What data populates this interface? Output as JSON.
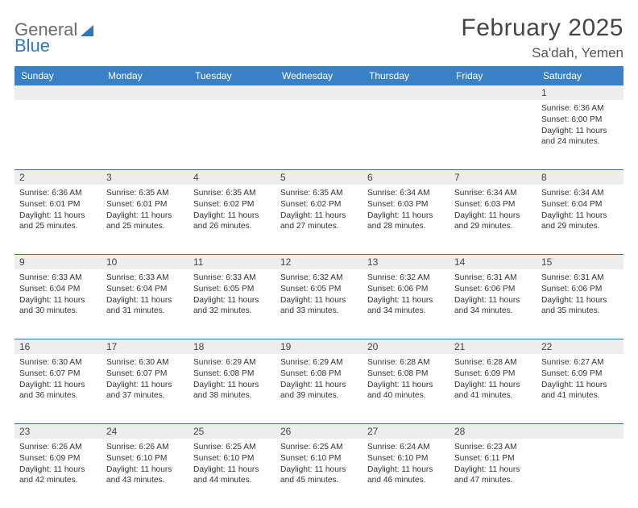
{
  "logo": {
    "word1": "General",
    "word2": "Blue"
  },
  "title": "February 2025",
  "location": "Sa'dah, Yemen",
  "colors": {
    "header_bg": "#3a80c4",
    "header_text": "#ffffff",
    "daynum_bg": "#ededed",
    "row_border": "#3a6fa5",
    "logo_gray": "#6b6b6b",
    "logo_blue": "#2f77bb"
  },
  "day_names": [
    "Sunday",
    "Monday",
    "Tuesday",
    "Wednesday",
    "Thursday",
    "Friday",
    "Saturday"
  ],
  "weeks": [
    {
      "nums": [
        "",
        "",
        "",
        "",
        "",
        "",
        "1"
      ],
      "cells": [
        null,
        null,
        null,
        null,
        null,
        null,
        {
          "sunrise": "Sunrise: 6:36 AM",
          "sunset": "Sunset: 6:00 PM",
          "daylight": "Daylight: 11 hours and 24 minutes."
        }
      ]
    },
    {
      "nums": [
        "2",
        "3",
        "4",
        "5",
        "6",
        "7",
        "8"
      ],
      "cells": [
        {
          "sunrise": "Sunrise: 6:36 AM",
          "sunset": "Sunset: 6:01 PM",
          "daylight": "Daylight: 11 hours and 25 minutes."
        },
        {
          "sunrise": "Sunrise: 6:35 AM",
          "sunset": "Sunset: 6:01 PM",
          "daylight": "Daylight: 11 hours and 25 minutes."
        },
        {
          "sunrise": "Sunrise: 6:35 AM",
          "sunset": "Sunset: 6:02 PM",
          "daylight": "Daylight: 11 hours and 26 minutes."
        },
        {
          "sunrise": "Sunrise: 6:35 AM",
          "sunset": "Sunset: 6:02 PM",
          "daylight": "Daylight: 11 hours and 27 minutes."
        },
        {
          "sunrise": "Sunrise: 6:34 AM",
          "sunset": "Sunset: 6:03 PM",
          "daylight": "Daylight: 11 hours and 28 minutes."
        },
        {
          "sunrise": "Sunrise: 6:34 AM",
          "sunset": "Sunset: 6:03 PM",
          "daylight": "Daylight: 11 hours and 29 minutes."
        },
        {
          "sunrise": "Sunrise: 6:34 AM",
          "sunset": "Sunset: 6:04 PM",
          "daylight": "Daylight: 11 hours and 29 minutes."
        }
      ]
    },
    {
      "nums": [
        "9",
        "10",
        "11",
        "12",
        "13",
        "14",
        "15"
      ],
      "cells": [
        {
          "sunrise": "Sunrise: 6:33 AM",
          "sunset": "Sunset: 6:04 PM",
          "daylight": "Daylight: 11 hours and 30 minutes."
        },
        {
          "sunrise": "Sunrise: 6:33 AM",
          "sunset": "Sunset: 6:04 PM",
          "daylight": "Daylight: 11 hours and 31 minutes."
        },
        {
          "sunrise": "Sunrise: 6:33 AM",
          "sunset": "Sunset: 6:05 PM",
          "daylight": "Daylight: 11 hours and 32 minutes."
        },
        {
          "sunrise": "Sunrise: 6:32 AM",
          "sunset": "Sunset: 6:05 PM",
          "daylight": "Daylight: 11 hours and 33 minutes."
        },
        {
          "sunrise": "Sunrise: 6:32 AM",
          "sunset": "Sunset: 6:06 PM",
          "daylight": "Daylight: 11 hours and 34 minutes."
        },
        {
          "sunrise": "Sunrise: 6:31 AM",
          "sunset": "Sunset: 6:06 PM",
          "daylight": "Daylight: 11 hours and 34 minutes."
        },
        {
          "sunrise": "Sunrise: 6:31 AM",
          "sunset": "Sunset: 6:06 PM",
          "daylight": "Daylight: 11 hours and 35 minutes."
        }
      ]
    },
    {
      "nums": [
        "16",
        "17",
        "18",
        "19",
        "20",
        "21",
        "22"
      ],
      "cells": [
        {
          "sunrise": "Sunrise: 6:30 AM",
          "sunset": "Sunset: 6:07 PM",
          "daylight": "Daylight: 11 hours and 36 minutes."
        },
        {
          "sunrise": "Sunrise: 6:30 AM",
          "sunset": "Sunset: 6:07 PM",
          "daylight": "Daylight: 11 hours and 37 minutes."
        },
        {
          "sunrise": "Sunrise: 6:29 AM",
          "sunset": "Sunset: 6:08 PM",
          "daylight": "Daylight: 11 hours and 38 minutes."
        },
        {
          "sunrise": "Sunrise: 6:29 AM",
          "sunset": "Sunset: 6:08 PM",
          "daylight": "Daylight: 11 hours and 39 minutes."
        },
        {
          "sunrise": "Sunrise: 6:28 AM",
          "sunset": "Sunset: 6:08 PM",
          "daylight": "Daylight: 11 hours and 40 minutes."
        },
        {
          "sunrise": "Sunrise: 6:28 AM",
          "sunset": "Sunset: 6:09 PM",
          "daylight": "Daylight: 11 hours and 41 minutes."
        },
        {
          "sunrise": "Sunrise: 6:27 AM",
          "sunset": "Sunset: 6:09 PM",
          "daylight": "Daylight: 11 hours and 41 minutes."
        }
      ]
    },
    {
      "nums": [
        "23",
        "24",
        "25",
        "26",
        "27",
        "28",
        ""
      ],
      "cells": [
        {
          "sunrise": "Sunrise: 6:26 AM",
          "sunset": "Sunset: 6:09 PM",
          "daylight": "Daylight: 11 hours and 42 minutes."
        },
        {
          "sunrise": "Sunrise: 6:26 AM",
          "sunset": "Sunset: 6:10 PM",
          "daylight": "Daylight: 11 hours and 43 minutes."
        },
        {
          "sunrise": "Sunrise: 6:25 AM",
          "sunset": "Sunset: 6:10 PM",
          "daylight": "Daylight: 11 hours and 44 minutes."
        },
        {
          "sunrise": "Sunrise: 6:25 AM",
          "sunset": "Sunset: 6:10 PM",
          "daylight": "Daylight: 11 hours and 45 minutes."
        },
        {
          "sunrise": "Sunrise: 6:24 AM",
          "sunset": "Sunset: 6:10 PM",
          "daylight": "Daylight: 11 hours and 46 minutes."
        },
        {
          "sunrise": "Sunrise: 6:23 AM",
          "sunset": "Sunset: 6:11 PM",
          "daylight": "Daylight: 11 hours and 47 minutes."
        },
        null
      ]
    }
  ]
}
